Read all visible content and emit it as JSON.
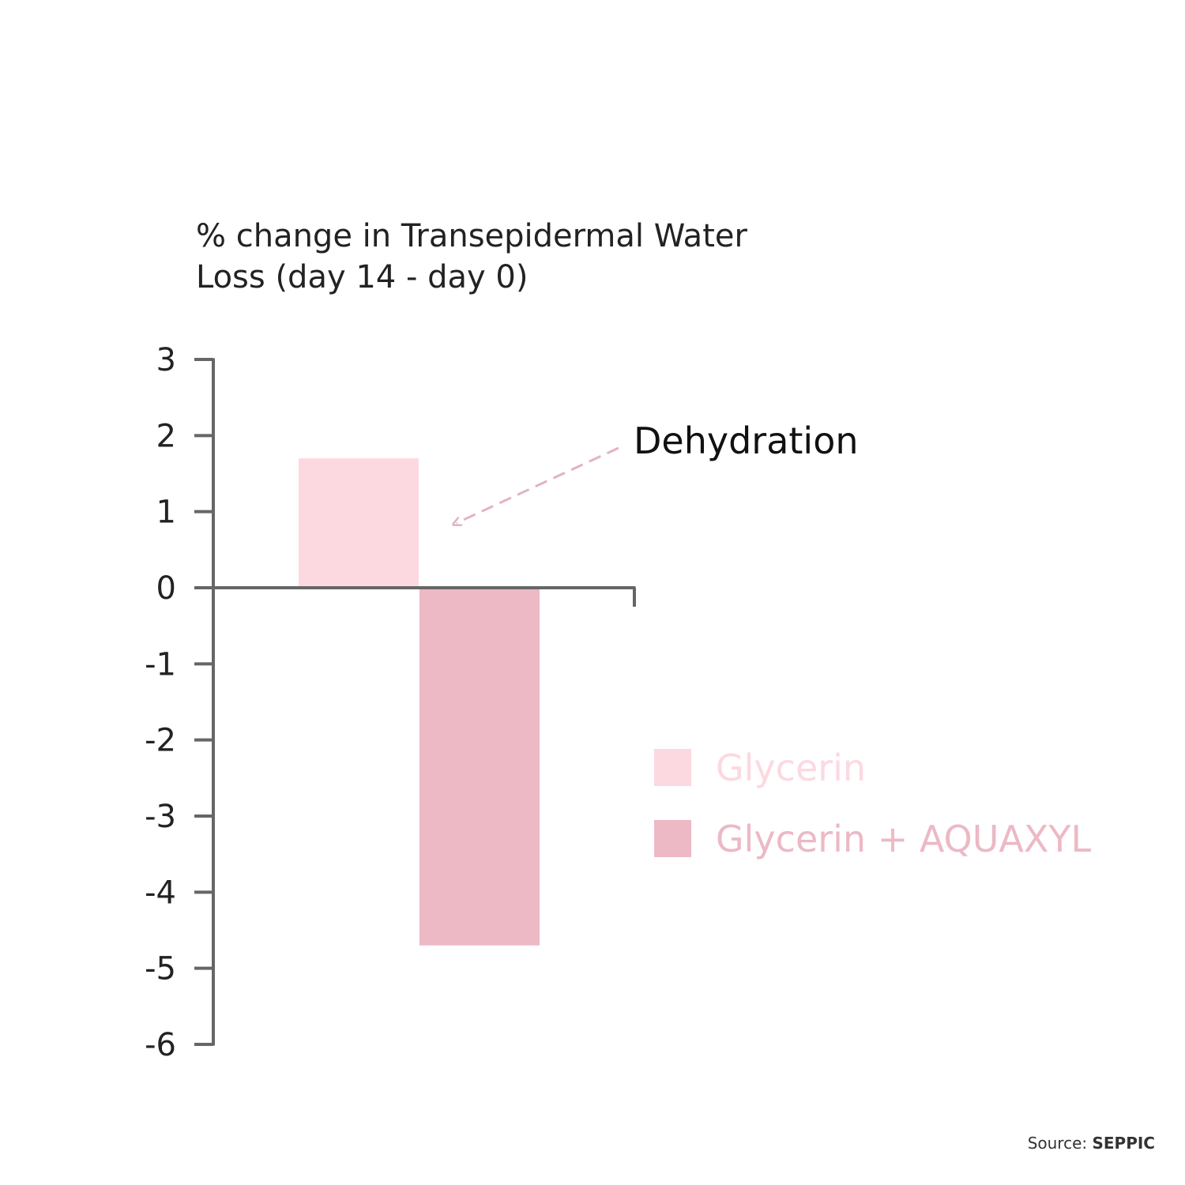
{
  "chart_data": {
    "type": "bar",
    "title_lines": [
      "% change in Transepidermal Water",
      "Loss (day 14 - day 0)"
    ],
    "xlabel": "",
    "ylabel": "",
    "ylim": [
      -6,
      3
    ],
    "yticks": [
      "3",
      "2",
      "1",
      "0",
      "-1",
      "-2",
      "-3",
      "-4",
      "-5",
      "-6"
    ],
    "ytick_values": [
      3,
      2,
      1,
      0,
      -1,
      -2,
      -3,
      -4,
      -5,
      -6
    ],
    "grid": false,
    "legend_position": "right",
    "series": [
      {
        "name": "Glycerin",
        "values": [
          1.7
        ],
        "color": "#fcd9e1"
      },
      {
        "name": "Glycerin + AQUAXYL",
        "values": [
          -4.7
        ],
        "color": "#ecb9c5"
      }
    ],
    "annotation": {
      "text": "Dehydration",
      "arrow_color": "#e2b4c0",
      "points_to_series": "Glycerin"
    },
    "axis_color": "#666666"
  },
  "source": {
    "label": "Source: ",
    "brand": "SEPPIC"
  }
}
